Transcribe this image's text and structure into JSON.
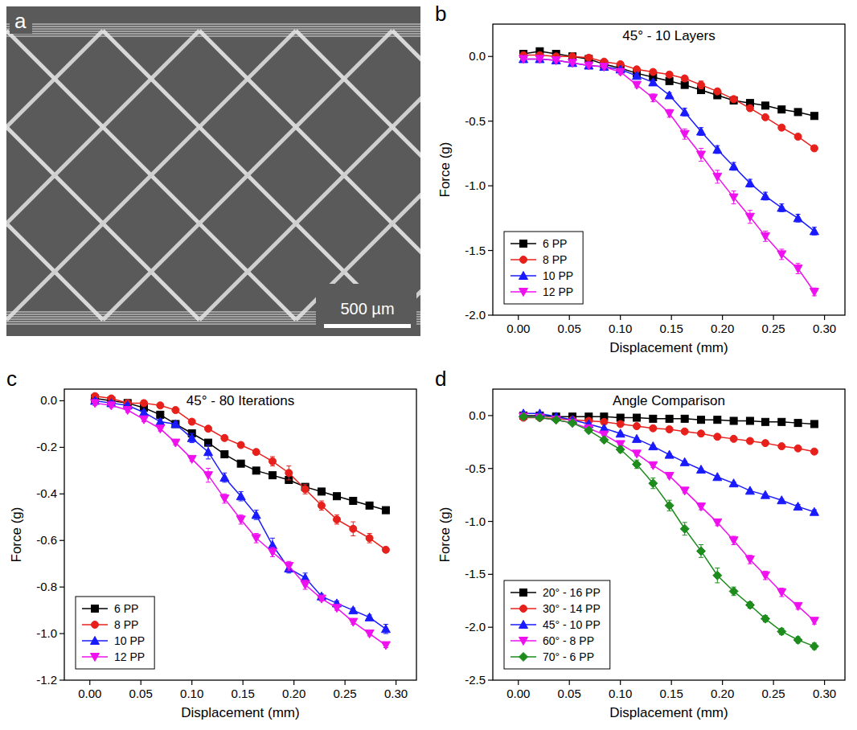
{
  "chart_data": [
    {
      "type": "image",
      "panel_label": "a",
      "annotations": [
        "500 µm"
      ]
    },
    {
      "type": "line",
      "panel_label": "b",
      "title": "45° - 10 Layers",
      "x_label": "Displacement (mm)",
      "y_label": "Force (g)",
      "xlim": [
        -0.025,
        0.32
      ],
      "ylim": [
        -2.0,
        0.25
      ],
      "xticks": [
        {
          "value": 0,
          "label": "0.00"
        },
        {
          "value": 0.05,
          "label": "0.05"
        },
        {
          "value": 0.1,
          "label": "0.10"
        },
        {
          "value": 0.15,
          "label": "0.15"
        },
        {
          "value": 0.2,
          "label": "0.20"
        },
        {
          "value": 0.25,
          "label": "0.25"
        },
        {
          "value": 0.3,
          "label": "0.30"
        }
      ],
      "yticks": [
        {
          "value": -2.0,
          "label": "-2.0"
        },
        {
          "value": -1.5,
          "label": "-1.5"
        },
        {
          "value": -1.0,
          "label": "-1.0"
        },
        {
          "value": -0.5,
          "label": "-0.5"
        },
        {
          "value": 0,
          "label": "0.0"
        }
      ],
      "legend": "lower left",
      "grid": false,
      "x": [
        0.005,
        0.021,
        0.037,
        0.053,
        0.069,
        0.084,
        0.1,
        0.116,
        0.132,
        0.148,
        0.163,
        0.179,
        0.195,
        0.211,
        0.227,
        0.242,
        0.258,
        0.274,
        0.29
      ],
      "series": [
        {
          "name": "6 PP",
          "color": "#000000",
          "marker": "square",
          "values": [
            0.02,
            0.04,
            0.02,
            0,
            -0.02,
            -0.06,
            -0.09,
            -0.13,
            -0.16,
            -0.19,
            -0.22,
            -0.26,
            -0.3,
            -0.34,
            -0.36,
            -0.38,
            -0.41,
            -0.43,
            -0.46
          ],
          "errors": [
            0.01,
            0.01,
            0.01,
            0.01,
            0.01,
            0.01,
            0.01,
            0.01,
            0.01,
            0.01,
            0.01,
            0.01,
            0.01,
            0.01,
            0.01,
            0.01,
            0.01,
            0.01,
            0.02
          ]
        },
        {
          "name": "8 PP",
          "color": "#e8201c",
          "marker": "circle",
          "values": [
            0.01,
            0.01,
            0,
            0,
            -0.01,
            -0.04,
            -0.06,
            -0.1,
            -0.12,
            -0.14,
            -0.17,
            -0.22,
            -0.27,
            -0.33,
            -0.4,
            -0.47,
            -0.55,
            -0.62,
            -0.71
          ],
          "errors": [
            0.01,
            0.01,
            0.01,
            0.01,
            0.01,
            0.01,
            0.01,
            0.01,
            0.01,
            0.02,
            0.02,
            0.03,
            0.02,
            0.02,
            0.02,
            0.01,
            0.01,
            0.01,
            0.02
          ]
        },
        {
          "name": "10 PP",
          "color": "#1a1aff",
          "marker": "triangle-up",
          "values": [
            -0.02,
            -0.02,
            -0.03,
            -0.05,
            -0.07,
            -0.08,
            -0.1,
            -0.15,
            -0.2,
            -0.3,
            -0.43,
            -0.58,
            -0.72,
            -0.85,
            -0.98,
            -1.08,
            -1.17,
            -1.25,
            -1.35
          ],
          "errors": [
            0.01,
            0.01,
            0.01,
            0.01,
            0.01,
            0.01,
            0.01,
            0.02,
            0.02,
            0.02,
            0.03,
            0.03,
            0.03,
            0.03,
            0.03,
            0.03,
            0.03,
            0.03,
            0.03
          ]
        },
        {
          "name": "12 PP",
          "color": "#ee11ee",
          "marker": "triangle-down",
          "values": [
            -0.02,
            -0.02,
            -0.03,
            -0.05,
            -0.07,
            -0.08,
            -0.12,
            -0.22,
            -0.32,
            -0.44,
            -0.6,
            -0.76,
            -0.93,
            -1.09,
            -1.24,
            -1.39,
            -1.53,
            -1.64,
            -1.82
          ],
          "errors": [
            0.01,
            0.01,
            0.01,
            0.01,
            0.01,
            0.01,
            0.02,
            0.02,
            0.03,
            0.03,
            0.04,
            0.05,
            0.05,
            0.05,
            0.05,
            0.04,
            0.04,
            0.04,
            0.03
          ]
        }
      ]
    },
    {
      "type": "line",
      "panel_label": "c",
      "title": "45° - 80 Iterations",
      "x_label": "Displacement (mm)",
      "y_label": "Force (g)",
      "xlim": [
        -0.025,
        0.32
      ],
      "ylim": [
        -1.2,
        0.05
      ],
      "xticks": [
        {
          "value": 0,
          "label": "0.00"
        },
        {
          "value": 0.05,
          "label": "0.05"
        },
        {
          "value": 0.1,
          "label": "0.10"
        },
        {
          "value": 0.15,
          "label": "0.15"
        },
        {
          "value": 0.2,
          "label": "0.20"
        },
        {
          "value": 0.25,
          "label": "0.25"
        },
        {
          "value": 0.3,
          "label": "0.30"
        }
      ],
      "yticks": [
        {
          "value": -1.2,
          "label": "-1.2"
        },
        {
          "value": -1.0,
          "label": "-1.0"
        },
        {
          "value": -0.8,
          "label": "-0.8"
        },
        {
          "value": -0.6,
          "label": "-0.6"
        },
        {
          "value": -0.4,
          "label": "-0.4"
        },
        {
          "value": -0.2,
          "label": "-0.2"
        },
        {
          "value": 0,
          "label": "0.0"
        }
      ],
      "legend": "lower left",
      "grid": false,
      "x": [
        0.005,
        0.021,
        0.037,
        0.053,
        0.069,
        0.084,
        0.1,
        0.116,
        0.132,
        0.148,
        0.163,
        0.179,
        0.195,
        0.211,
        0.227,
        0.242,
        0.258,
        0.274,
        0.29
      ],
      "series": [
        {
          "name": "6 PP",
          "color": "#000000",
          "marker": "square",
          "values": [
            0.01,
            0,
            -0.01,
            -0.03,
            -0.06,
            -0.1,
            -0.14,
            -0.18,
            -0.23,
            -0.27,
            -0.3,
            -0.32,
            -0.34,
            -0.37,
            -0.39,
            -0.41,
            -0.43,
            -0.45,
            -0.47
          ],
          "errors": [
            0.01,
            0.01,
            0.01,
            0.01,
            0.01,
            0.01,
            0.01,
            0.01,
            0.01,
            0.01,
            0.01,
            0.01,
            0.01,
            0.01,
            0.01,
            0.01,
            0.01,
            0.01,
            0.01
          ]
        },
        {
          "name": "8 PP",
          "color": "#e8201c",
          "marker": "circle",
          "values": [
            0.02,
            0.01,
            -0.01,
            -0.01,
            -0.02,
            -0.04,
            -0.09,
            -0.12,
            -0.16,
            -0.19,
            -0.22,
            -0.26,
            -0.31,
            -0.38,
            -0.45,
            -0.51,
            -0.55,
            -0.59,
            -0.64
          ],
          "errors": [
            0.01,
            0.01,
            0.01,
            0.01,
            0.01,
            0.01,
            0.01,
            0.01,
            0.01,
            0.01,
            0.01,
            0.02,
            0.03,
            0.02,
            0.02,
            0.02,
            0.03,
            0.02,
            0.01
          ]
        },
        {
          "name": "10 PP",
          "color": "#1a1aff",
          "marker": "triangle-up",
          "values": [
            0,
            -0.01,
            -0.02,
            -0.05,
            -0.09,
            -0.1,
            -0.16,
            -0.22,
            -0.33,
            -0.41,
            -0.49,
            -0.62,
            -0.72,
            -0.76,
            -0.84,
            -0.87,
            -0.9,
            -0.93,
            -0.98
          ],
          "errors": [
            0.01,
            0.01,
            0.01,
            0.01,
            0.01,
            0.01,
            0.02,
            0.03,
            0.02,
            0.02,
            0.02,
            0.03,
            0.02,
            0.02,
            0.01,
            0.01,
            0.01,
            0.01,
            0.02
          ]
        },
        {
          "name": "12 PP",
          "color": "#ee11ee",
          "marker": "triangle-down",
          "values": [
            -0.01,
            -0.02,
            -0.04,
            -0.08,
            -0.12,
            -0.18,
            -0.25,
            -0.32,
            -0.42,
            -0.51,
            -0.59,
            -0.65,
            -0.71,
            -0.79,
            -0.85,
            -0.89,
            -0.95,
            -1.0,
            -1.05
          ],
          "errors": [
            0.01,
            0.01,
            0.01,
            0.01,
            0.01,
            0.01,
            0.01,
            0.03,
            0.02,
            0.02,
            0.02,
            0.02,
            0.02,
            0.02,
            0.01,
            0.01,
            0.01,
            0.01,
            0.01
          ]
        }
      ]
    },
    {
      "type": "line",
      "panel_label": "d",
      "title": "Angle Comparison",
      "x_label": "Displacement (mm)",
      "y_label": "Force (g)",
      "xlim": [
        -0.025,
        0.32
      ],
      "ylim": [
        -2.5,
        0.25
      ],
      "xticks": [
        {
          "value": 0,
          "label": "0.00"
        },
        {
          "value": 0.05,
          "label": "0.05"
        },
        {
          "value": 0.1,
          "label": "0.10"
        },
        {
          "value": 0.15,
          "label": "0.15"
        },
        {
          "value": 0.2,
          "label": "0.20"
        },
        {
          "value": 0.25,
          "label": "0.25"
        },
        {
          "value": 0.3,
          "label": "0.30"
        }
      ],
      "yticks": [
        {
          "value": -2.5,
          "label": "-2.5"
        },
        {
          "value": -2.0,
          "label": "-2.0"
        },
        {
          "value": -1.5,
          "label": "-1.5"
        },
        {
          "value": -1.0,
          "label": "-1.0"
        },
        {
          "value": -0.5,
          "label": "-0.5"
        },
        {
          "value": 0,
          "label": "0.0"
        }
      ],
      "legend": "lower left",
      "grid": false,
      "x": [
        0.005,
        0.021,
        0.037,
        0.053,
        0.069,
        0.084,
        0.1,
        0.116,
        0.132,
        0.148,
        0.163,
        0.179,
        0.195,
        0.211,
        0.227,
        0.242,
        0.258,
        0.274,
        0.29
      ],
      "series": [
        {
          "name": "20° - 16 PP",
          "color": "#000000",
          "marker": "square",
          "values": [
            0,
            0,
            -0.01,
            -0.01,
            -0.01,
            -0.01,
            -0.02,
            -0.02,
            -0.03,
            -0.03,
            -0.03,
            -0.04,
            -0.04,
            -0.05,
            -0.05,
            -0.06,
            -0.06,
            -0.07,
            -0.08
          ],
          "errors": [
            0.01,
            0.01,
            0.01,
            0.01,
            0.01,
            0.01,
            0.01,
            0.01,
            0.01,
            0.01,
            0.01,
            0.01,
            0.01,
            0.01,
            0.01,
            0.01,
            0.01,
            0.01,
            0.01
          ]
        },
        {
          "name": "30° - 14 PP",
          "color": "#e8201c",
          "marker": "circle",
          "values": [
            -0.02,
            -0.02,
            -0.03,
            -0.04,
            -0.05,
            -0.06,
            -0.08,
            -0.1,
            -0.12,
            -0.13,
            -0.15,
            -0.17,
            -0.2,
            -0.22,
            -0.24,
            -0.26,
            -0.29,
            -0.31,
            -0.34
          ],
          "errors": [
            0.01,
            0.01,
            0.01,
            0.01,
            0.01,
            0.01,
            0.01,
            0.01,
            0.01,
            0.01,
            0.01,
            0.01,
            0.01,
            0.01,
            0.01,
            0.01,
            0.02,
            0.02,
            0.02
          ]
        },
        {
          "name": "45° - 10 PP",
          "color": "#1a1aff",
          "marker": "triangle-up",
          "values": [
            0.02,
            0.02,
            -0.01,
            -0.04,
            -0.08,
            -0.12,
            -0.17,
            -0.22,
            -0.29,
            -0.37,
            -0.44,
            -0.51,
            -0.58,
            -0.64,
            -0.71,
            -0.75,
            -0.8,
            -0.86,
            -0.91
          ],
          "errors": [
            0.01,
            0.01,
            0.01,
            0.01,
            0.01,
            0.01,
            0.01,
            0.01,
            0.01,
            0.01,
            0.01,
            0.01,
            0.01,
            0.01,
            0.01,
            0.01,
            0.01,
            0.02,
            0.02
          ]
        },
        {
          "name": "60° - 8 PP",
          "color": "#ee11ee",
          "marker": "triangle-down",
          "values": [
            -0.01,
            -0.02,
            -0.04,
            -0.07,
            -0.12,
            -0.18,
            -0.27,
            -0.36,
            -0.47,
            -0.57,
            -0.71,
            -0.86,
            -1.01,
            -1.18,
            -1.36,
            -1.51,
            -1.67,
            -1.8,
            -1.94
          ],
          "errors": [
            0.01,
            0.01,
            0.01,
            0.01,
            0.01,
            0.01,
            0.01,
            0.02,
            0.02,
            0.02,
            0.02,
            0.03,
            0.03,
            0.04,
            0.04,
            0.04,
            0.04,
            0.03,
            0.03
          ]
        },
        {
          "name": "70° - 6 PP",
          "color": "#1d8c1d",
          "marker": "diamond",
          "values": [
            -0.01,
            -0.02,
            -0.04,
            -0.07,
            -0.14,
            -0.23,
            -0.32,
            -0.46,
            -0.64,
            -0.85,
            -1.07,
            -1.28,
            -1.51,
            -1.66,
            -1.79,
            -1.92,
            -2.04,
            -2.12,
            -2.18
          ],
          "errors": [
            0.01,
            0.01,
            0.01,
            0.01,
            0.02,
            0.02,
            0.03,
            0.04,
            0.05,
            0.05,
            0.06,
            0.06,
            0.07,
            0.04,
            0.03,
            0.03,
            0.03,
            0.03,
            0.03
          ]
        }
      ]
    }
  ]
}
